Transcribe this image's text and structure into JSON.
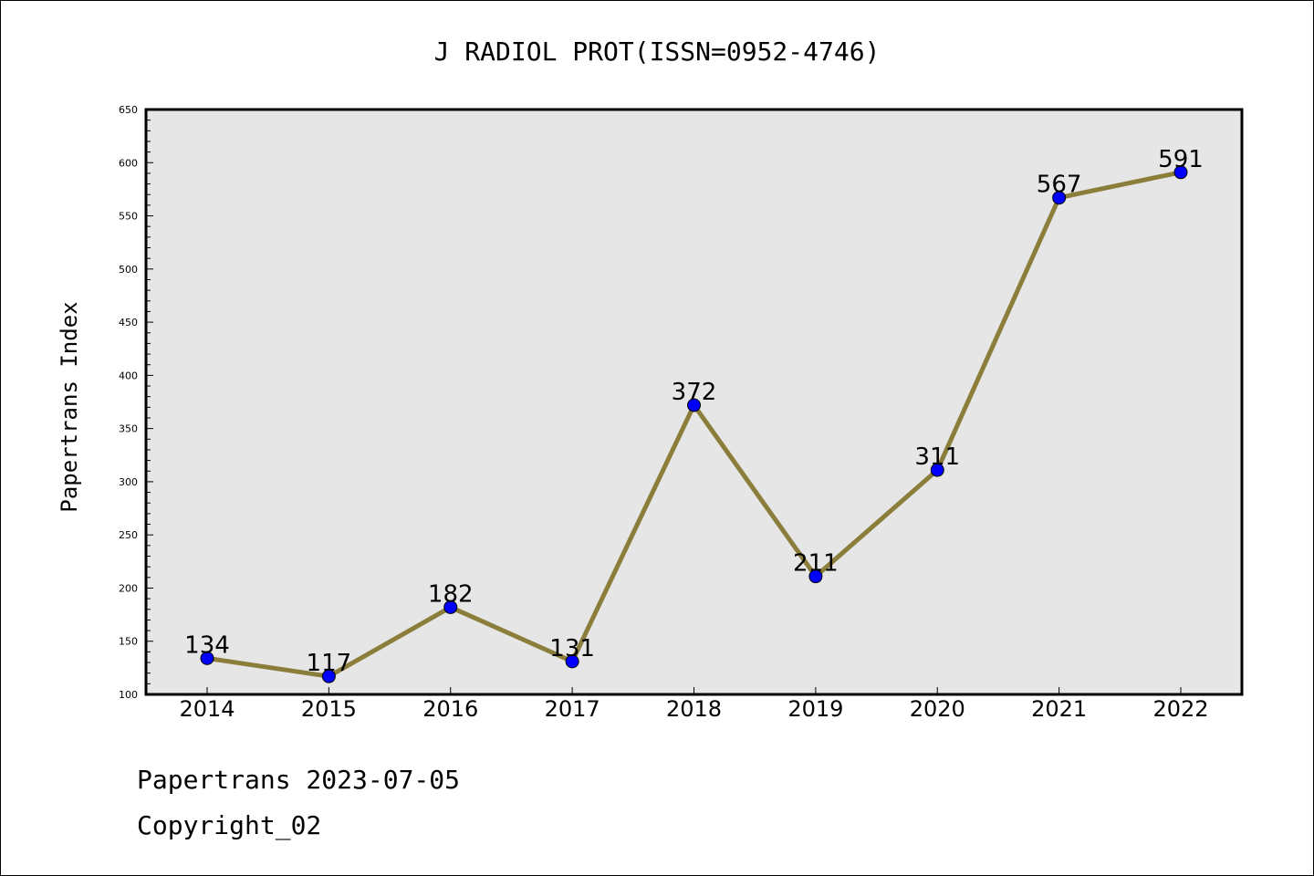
{
  "chart_data": {
    "type": "line",
    "title": "J RADIOL PROT(ISSN=0952-4746)",
    "ylabel": "Papertrans Index",
    "xlabel": "",
    "categories": [
      "2014",
      "2015",
      "2016",
      "2017",
      "2018",
      "2019",
      "2020",
      "2021",
      "2022"
    ],
    "series": [
      {
        "values": [
          134,
          117,
          182,
          131,
          372,
          211,
          311,
          567,
          591
        ]
      }
    ],
    "ylim": [
      100,
      650
    ],
    "yticks": [
      100,
      150,
      200,
      250,
      300,
      350,
      400,
      450,
      500,
      550,
      600,
      650
    ],
    "grid": false,
    "legend": "none",
    "colors": {
      "line": "#8b7d3a",
      "marker": "#0000ff",
      "plot_bg": "#e6e6e6"
    }
  },
  "footer": {
    "line1": "Papertrans 2023-07-05",
    "line2": "Copyright_02"
  }
}
